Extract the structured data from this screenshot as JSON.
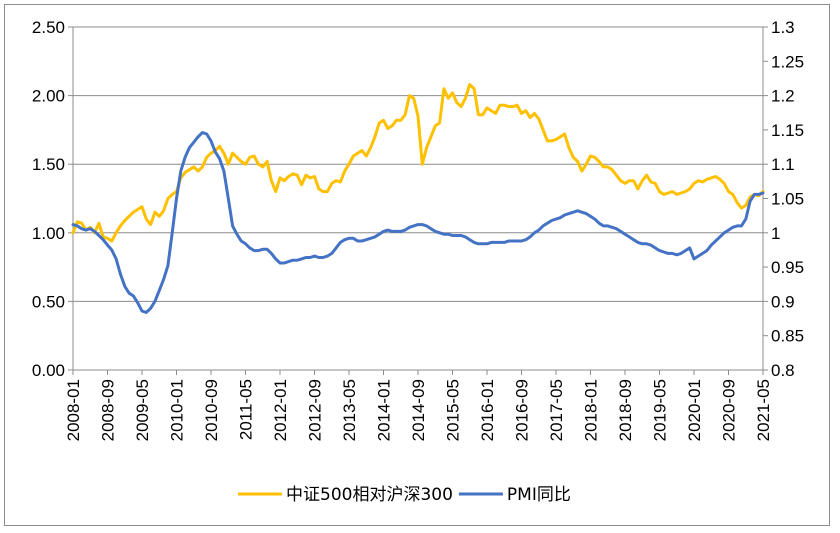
{
  "chart_data": {
    "type": "line",
    "title": "",
    "xlabel": "",
    "ylabel": "",
    "x_start": "2008-01",
    "x_end": "2021-05",
    "x_ticks": [
      "2008-01",
      "2008-09",
      "2009-05",
      "2010-01",
      "2010-09",
      "2011-05",
      "2012-01",
      "2012-09",
      "2013-05",
      "2014-01",
      "2014-09",
      "2015-05",
      "2016-01",
      "2016-09",
      "2017-05",
      "2018-01",
      "2018-09",
      "2019-05",
      "2020-01",
      "2020-09",
      "2021-05"
    ],
    "y_left": {
      "ticks": [
        "0.00",
        "0.50",
        "1.00",
        "1.50",
        "2.00",
        "2.50"
      ],
      "ylim": [
        0,
        2.5
      ]
    },
    "y_right": {
      "ticks": [
        "0.8",
        "0.85",
        "0.9",
        "0.95",
        "1",
        "1.05",
        "1.1",
        "1.15",
        "1.2",
        "1.25",
        "1.3"
      ],
      "ylim": [
        0.8,
        1.3
      ]
    },
    "grid": "horizontal",
    "legend_position": "bottom",
    "series": [
      {
        "name": "中证500相对沪深300",
        "axis": "left",
        "color": "#FFC000",
        "values": [
          1.0,
          1.08,
          1.07,
          1.02,
          1.04,
          1.0,
          1.07,
          0.97,
          0.96,
          0.94,
          1.0,
          1.05,
          1.09,
          1.12,
          1.15,
          1.17,
          1.19,
          1.1,
          1.06,
          1.15,
          1.12,
          1.16,
          1.25,
          1.28,
          1.3,
          1.4,
          1.44,
          1.46,
          1.48,
          1.45,
          1.48,
          1.55,
          1.58,
          1.6,
          1.63,
          1.58,
          1.5,
          1.58,
          1.55,
          1.52,
          1.5,
          1.55,
          1.56,
          1.5,
          1.48,
          1.52,
          1.38,
          1.3,
          1.4,
          1.38,
          1.41,
          1.43,
          1.42,
          1.35,
          1.42,
          1.4,
          1.41,
          1.32,
          1.3,
          1.3,
          1.36,
          1.38,
          1.37,
          1.45,
          1.5,
          1.56,
          1.58,
          1.6,
          1.56,
          1.62,
          1.7,
          1.8,
          1.82,
          1.76,
          1.78,
          1.82,
          1.82,
          1.86,
          2.0,
          1.98,
          1.85,
          1.5,
          1.62,
          1.7,
          1.78,
          1.8,
          2.05,
          1.98,
          2.02,
          1.95,
          1.92,
          1.98,
          2.08,
          2.05,
          1.86,
          1.86,
          1.91,
          1.89,
          1.87,
          1.93,
          1.93,
          1.92,
          1.92,
          1.93,
          1.87,
          1.89,
          1.84,
          1.87,
          1.83,
          1.75,
          1.67,
          1.67,
          1.68,
          1.7,
          1.72,
          1.62,
          1.55,
          1.52,
          1.45,
          1.5,
          1.56,
          1.55,
          1.52,
          1.48,
          1.48,
          1.46,
          1.42,
          1.38,
          1.36,
          1.38,
          1.38,
          1.32,
          1.38,
          1.42,
          1.37,
          1.36,
          1.3,
          1.28,
          1.29,
          1.3,
          1.28,
          1.29,
          1.3,
          1.32,
          1.36,
          1.38,
          1.37,
          1.39,
          1.4,
          1.41,
          1.39,
          1.36,
          1.3,
          1.28,
          1.22,
          1.18,
          1.2,
          1.26,
          1.28,
          1.27,
          1.3
        ]
      },
      {
        "name": "PMI同比",
        "axis": "right",
        "color": "#4472C4",
        "values": [
          1.012,
          1.01,
          1.006,
          1.004,
          1.006,
          1.002,
          0.996,
          0.99,
          0.982,
          0.975,
          0.962,
          0.94,
          0.922,
          0.912,
          0.908,
          0.898,
          0.886,
          0.884,
          0.89,
          0.9,
          0.916,
          0.932,
          0.952,
          1.0,
          1.05,
          1.09,
          1.11,
          1.124,
          1.132,
          1.14,
          1.146,
          1.144,
          1.134,
          1.118,
          1.108,
          1.09,
          1.05,
          1.01,
          0.998,
          0.988,
          0.984,
          0.978,
          0.974,
          0.974,
          0.976,
          0.976,
          0.97,
          0.962,
          0.956,
          0.956,
          0.958,
          0.96,
          0.96,
          0.962,
          0.964,
          0.964,
          0.966,
          0.964,
          0.964,
          0.966,
          0.97,
          0.978,
          0.986,
          0.99,
          0.992,
          0.992,
          0.988,
          0.988,
          0.99,
          0.992,
          0.994,
          0.998,
          1.002,
          1.004,
          1.002,
          1.002,
          1.002,
          1.004,
          1.008,
          1.01,
          1.012,
          1.012,
          1.01,
          1.006,
          1.002,
          1.0,
          0.998,
          0.998,
          0.996,
          0.996,
          0.996,
          0.994,
          0.99,
          0.986,
          0.984,
          0.984,
          0.984,
          0.986,
          0.986,
          0.986,
          0.986,
          0.988,
          0.988,
          0.988,
          0.988,
          0.99,
          0.994,
          1.0,
          1.004,
          1.01,
          1.014,
          1.018,
          1.02,
          1.022,
          1.026,
          1.028,
          1.03,
          1.032,
          1.03,
          1.028,
          1.024,
          1.02,
          1.014,
          1.01,
          1.01,
          1.008,
          1.006,
          1.002,
          0.998,
          0.994,
          0.99,
          0.986,
          0.984,
          0.984,
          0.982,
          0.978,
          0.974,
          0.972,
          0.97,
          0.97,
          0.968,
          0.97,
          0.974,
          0.978,
          0.962,
          0.966,
          0.97,
          0.974,
          0.982,
          0.988,
          0.994,
          1.0,
          1.004,
          1.008,
          1.01,
          1.01,
          1.02,
          1.046,
          1.056,
          1.056,
          1.058
        ]
      }
    ]
  }
}
